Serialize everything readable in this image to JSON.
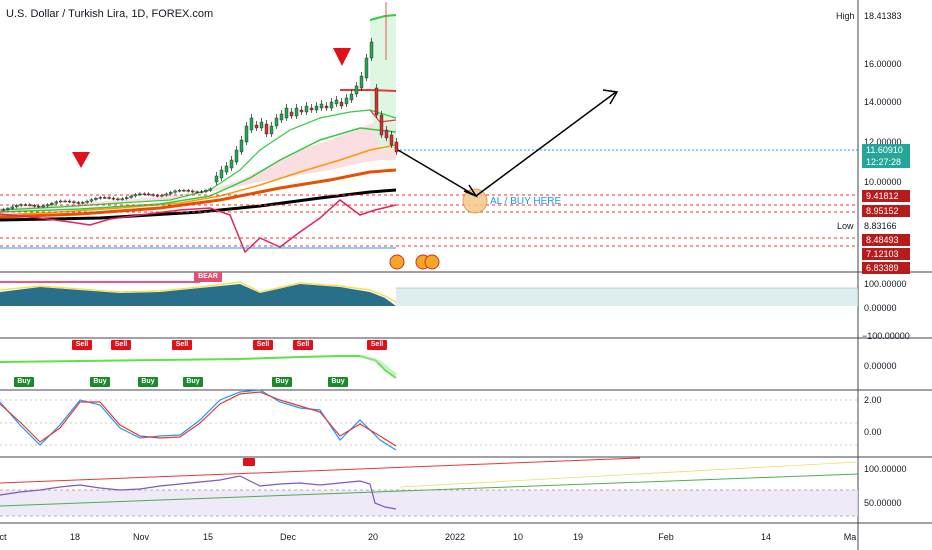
{
  "title": "U.S. Dollar / Turkish Lira, 1D, FOREX.com",
  "annotation_note": "AL / BUY HERE",
  "high_label": "High",
  "low_label": "Low",
  "high_value": "18.41383",
  "low_value": "8.83166",
  "main_scale": [
    "16.00000",
    "14.00000",
    "12.00000",
    "10.00000"
  ],
  "current_price": "11.60910",
  "countdown": "12:27:28",
  "level_tags": [
    {
      "value": "9.41812",
      "color": "#b71c1c"
    },
    {
      "value": "8.95152",
      "color": "#b71c1c"
    },
    {
      "value": "8.48493",
      "color": "#b71c1c"
    },
    {
      "value": "7.12103",
      "color": "#b71c1c"
    },
    {
      "value": "6.83389",
      "color": "#b71c1c"
    }
  ],
  "pane2_scale": [
    "100.00000",
    "0.00000",
    "−100.00000"
  ],
  "pane3_scale": [
    "0.00000"
  ],
  "pane4_scale": [
    "2.00",
    "0.00"
  ],
  "pane5_scale": [
    "100.00000",
    "50.00000"
  ],
  "x_axis": [
    "ct",
    "18",
    "Nov",
    "15",
    "Dec",
    "20",
    "2022",
    "10",
    "19",
    "Feb",
    "14",
    "Ma"
  ],
  "bear_label": "BEAR",
  "sell_label": "Sell",
  "buy_label": "Buy",
  "colors": {
    "up": "#26a69a",
    "down": "#ef5350",
    "accent": "#2196f3",
    "sell": "#e0111b",
    "buy": "#1b8a2b"
  }
}
